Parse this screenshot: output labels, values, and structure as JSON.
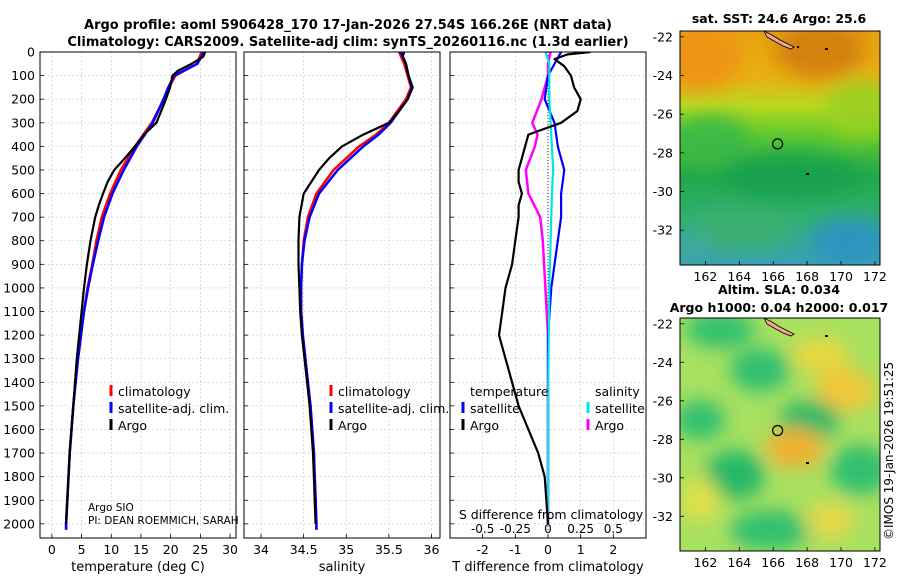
{
  "header": {
    "title_line1": "Argo profile: aoml 5906428_170 17-Jan-2026 27.54S 166.26E (NRT data)",
    "title_line2": "Climatology: CARS2009. Satellite-adj clim: synTS_20260116.nc (1.3d earlier)"
  },
  "credit": "©IMOS 19-Jan-2026 19:51:25",
  "colors": {
    "climatology": "#ff0000",
    "satellite_adj": "#0000ff",
    "argo": "#000000",
    "sat_diff": "#00e5e5",
    "argo_sal_diff": "#ff00ff"
  },
  "chart_data": [
    {
      "type": "line",
      "id": "temperature",
      "xlabel": "temperature (deg C)",
      "ylabel": "",
      "xlim": [
        -2,
        31
      ],
      "ylim": [
        2060,
        0
      ],
      "xticks": [
        0,
        5,
        10,
        15,
        20,
        25,
        30
      ],
      "yticks": [
        0,
        100,
        200,
        300,
        400,
        500,
        600,
        700,
        800,
        900,
        1000,
        1100,
        1200,
        1300,
        1400,
        1500,
        1600,
        1700,
        1800,
        1900,
        2000
      ],
      "legend": [
        "climatology",
        "satellite-adj. clim.",
        "Argo"
      ],
      "annotations": [
        "Argo SIO",
        "PI: DEAN ROEMMICH, SARAH"
      ],
      "series": [
        {
          "name": "climatology",
          "depth": [
            0,
            50,
            100,
            150,
            200,
            300,
            400,
            500,
            600,
            700,
            800,
            900,
            1000,
            1100,
            1200,
            1300,
            1400,
            1500,
            1600,
            1700,
            1800,
            1900,
            2000,
            2025
          ],
          "values": [
            25.2,
            24.4,
            20.8,
            19.7,
            18.9,
            16.8,
            14.0,
            11.6,
            9.8,
            8.4,
            7.5,
            6.8,
            6.0,
            5.4,
            4.9,
            4.4,
            4.0,
            3.6,
            3.3,
            3.0,
            2.8,
            2.6,
            2.4,
            2.4
          ]
        },
        {
          "name": "satellite-adj. clim.",
          "depth": [
            0,
            50,
            100,
            150,
            200,
            300,
            400,
            500,
            600,
            700,
            800,
            900,
            1000,
            1100,
            1200,
            1300,
            1400,
            1500,
            1600,
            1700,
            1800,
            1900,
            2000,
            2025
          ],
          "values": [
            25.6,
            24.5,
            20.6,
            19.6,
            18.8,
            17.0,
            14.3,
            12.1,
            10.2,
            8.8,
            7.8,
            6.9,
            6.1,
            5.4,
            4.9,
            4.4,
            4.0,
            3.6,
            3.3,
            3.0,
            2.8,
            2.6,
            2.4,
            2.4
          ]
        },
        {
          "name": "Argo",
          "depth": [
            0,
            20,
            50,
            80,
            100,
            150,
            200,
            250,
            300,
            350,
            400,
            450,
            500,
            550,
            600,
            650,
            700,
            800,
            900,
            1000,
            1100,
            1200,
            1300,
            1400,
            1500,
            1600,
            1700,
            1800,
            1900,
            2000
          ],
          "values": [
            25.8,
            25.5,
            23.5,
            21.2,
            20.3,
            19.9,
            19.2,
            18.4,
            17.6,
            15.5,
            14.0,
            12.3,
            10.5,
            9.4,
            8.6,
            7.9,
            7.3,
            6.5,
            5.9,
            5.4,
            5.0,
            4.6,
            4.2,
            3.9,
            3.6,
            3.3,
            3.0,
            2.8,
            2.6,
            2.4
          ]
        }
      ]
    },
    {
      "type": "line",
      "id": "salinity",
      "xlabel": "salinity",
      "xlim": [
        33.8,
        36.1
      ],
      "ylim": [
        2060,
        0
      ],
      "xticks": [
        34,
        34.5,
        35,
        35.5,
        36
      ],
      "legend": [
        "climatology",
        "satellite-adj. clim.",
        "Argo"
      ],
      "series": [
        {
          "name": "climatology",
          "depth": [
            0,
            50,
            100,
            150,
            200,
            300,
            350,
            400,
            500,
            600,
            700,
            800,
            900,
            1000,
            1100,
            1200,
            1300,
            1400,
            1500,
            1600,
            1700,
            1800,
            1900,
            2000,
            2025
          ],
          "values": [
            35.62,
            35.68,
            35.72,
            35.76,
            35.7,
            35.5,
            35.35,
            35.15,
            34.85,
            34.65,
            34.55,
            34.5,
            34.48,
            34.47,
            34.47,
            34.49,
            34.52,
            34.55,
            34.58,
            34.6,
            34.62,
            34.63,
            34.64,
            34.65,
            34.65
          ]
        },
        {
          "name": "satellite-adj. clim.",
          "depth": [
            0,
            50,
            100,
            150,
            200,
            300,
            350,
            400,
            500,
            600,
            700,
            800,
            900,
            1000,
            1100,
            1200,
            1300,
            1400,
            1500,
            1600,
            1700,
            1800,
            1900,
            2000,
            2025
          ],
          "values": [
            35.64,
            35.7,
            35.73,
            35.77,
            35.72,
            35.52,
            35.38,
            35.2,
            34.9,
            34.68,
            34.57,
            34.51,
            34.48,
            34.47,
            34.47,
            34.49,
            34.52,
            34.55,
            34.58,
            34.6,
            34.62,
            34.63,
            34.64,
            34.65,
            34.65
          ]
        },
        {
          "name": "Argo",
          "depth": [
            0,
            20,
            50,
            100,
            150,
            200,
            250,
            300,
            350,
            400,
            450,
            500,
            600,
            700,
            800,
            900,
            1000,
            1100,
            1200,
            1300,
            1400,
            1500,
            1600,
            1700,
            1800,
            1900,
            2000
          ],
          "values": [
            35.68,
            35.66,
            35.7,
            35.73,
            35.78,
            35.72,
            35.62,
            35.5,
            35.2,
            34.95,
            34.8,
            34.68,
            34.5,
            34.45,
            34.44,
            34.44,
            34.45,
            34.46,
            34.48,
            34.51,
            34.54,
            34.57,
            34.59,
            34.61,
            34.62,
            34.63,
            34.64
          ]
        }
      ]
    },
    {
      "type": "line",
      "id": "difference",
      "xlabel": "T difference from climatology",
      "secondary_axis_label": "S difference from climatology",
      "secondary_axis_ticks": [
        "-0.5",
        "-0.25",
        "0",
        "0.25",
        "0.5"
      ],
      "xlim": [
        -3,
        3
      ],
      "ylim": [
        2060,
        0
      ],
      "xticks": [
        -2,
        -1,
        0,
        1,
        2
      ],
      "legend_title_left": "temperature",
      "legend_title_right": "salinity",
      "legend": [
        "satellite",
        "Argo",
        "satellite",
        "Argo"
      ],
      "series": [
        {
          "name": "temperature satellite",
          "depth": [
            0,
            100,
            200,
            300,
            400,
            500,
            600,
            700,
            800,
            1000,
            1200,
            1500,
            2000
          ],
          "values": [
            0.4,
            0.0,
            -0.1,
            0.2,
            0.3,
            0.5,
            0.4,
            0.4,
            0.3,
            0.1,
            0.0,
            0.0,
            0.0
          ]
        },
        {
          "name": "temperature Argo",
          "depth": [
            0,
            10,
            30,
            60,
            100,
            150,
            200,
            250,
            300,
            350,
            400,
            450,
            500,
            550,
            600,
            650,
            700,
            800,
            900,
            1000,
            1100,
            1200,
            1300,
            1400,
            1500,
            1600,
            1700,
            1800,
            2000
          ],
          "values": [
            1.3,
            0.6,
            0.2,
            0.5,
            0.7,
            0.8,
            1.0,
            0.9,
            0.4,
            -0.6,
            -0.7,
            -0.8,
            -0.9,
            -0.9,
            -0.8,
            -0.9,
            -0.9,
            -1.0,
            -1.1,
            -1.3,
            -1.4,
            -1.5,
            -1.3,
            -1.1,
            -0.9,
            -0.6,
            -0.3,
            -0.1,
            0.0
          ]
        },
        {
          "name": "salinity satellite",
          "depth": [
            0,
            50,
            100,
            200,
            300,
            400,
            500,
            600,
            800,
            1000,
            1500,
            2000
          ],
          "values": [
            -0.02,
            0.01,
            0.01,
            0.01,
            0.02,
            0.03,
            0.04,
            0.03,
            0.02,
            0.01,
            0.0,
            0.0
          ]
        },
        {
          "name": "salinity Argo",
          "depth": [
            0,
            50,
            100,
            200,
            300,
            350,
            400,
            500,
            600,
            700,
            800,
            900,
            1000,
            1100,
            1200,
            1500,
            1800,
            2000
          ],
          "values": [
            0.02,
            0.0,
            0.0,
            -0.05,
            -0.12,
            -0.08,
            -0.1,
            -0.17,
            -0.15,
            -0.06,
            -0.04,
            -0.03,
            -0.02,
            -0.01,
            0.0,
            0.0,
            0.0,
            0.0
          ]
        }
      ]
    },
    {
      "type": "heatmap",
      "id": "sst_map",
      "title": "sat. SST: 24.6 Argo: 25.6",
      "xlim": [
        160.5,
        172.3
      ],
      "ylim": [
        -33.8,
        -21.7
      ],
      "xticks": [
        162,
        164,
        166,
        168,
        170,
        172
      ],
      "yticks": [
        -22,
        -24,
        -26,
        -28,
        -30,
        -32
      ],
      "marker": [
        166.26,
        -27.54
      ]
    },
    {
      "type": "heatmap",
      "id": "sla_map",
      "title_line1": "Altim. SLA: 0.034",
      "title_line2": "Argo h1000: 0.04 h2000: 0.017",
      "xlim": [
        160.5,
        172.3
      ],
      "ylim": [
        -33.8,
        -21.7
      ],
      "xticks": [
        162,
        164,
        166,
        168,
        170,
        172
      ],
      "yticks": [
        -22,
        -24,
        -26,
        -28,
        -30,
        -32
      ],
      "marker": [
        166.26,
        -27.54
      ]
    }
  ]
}
